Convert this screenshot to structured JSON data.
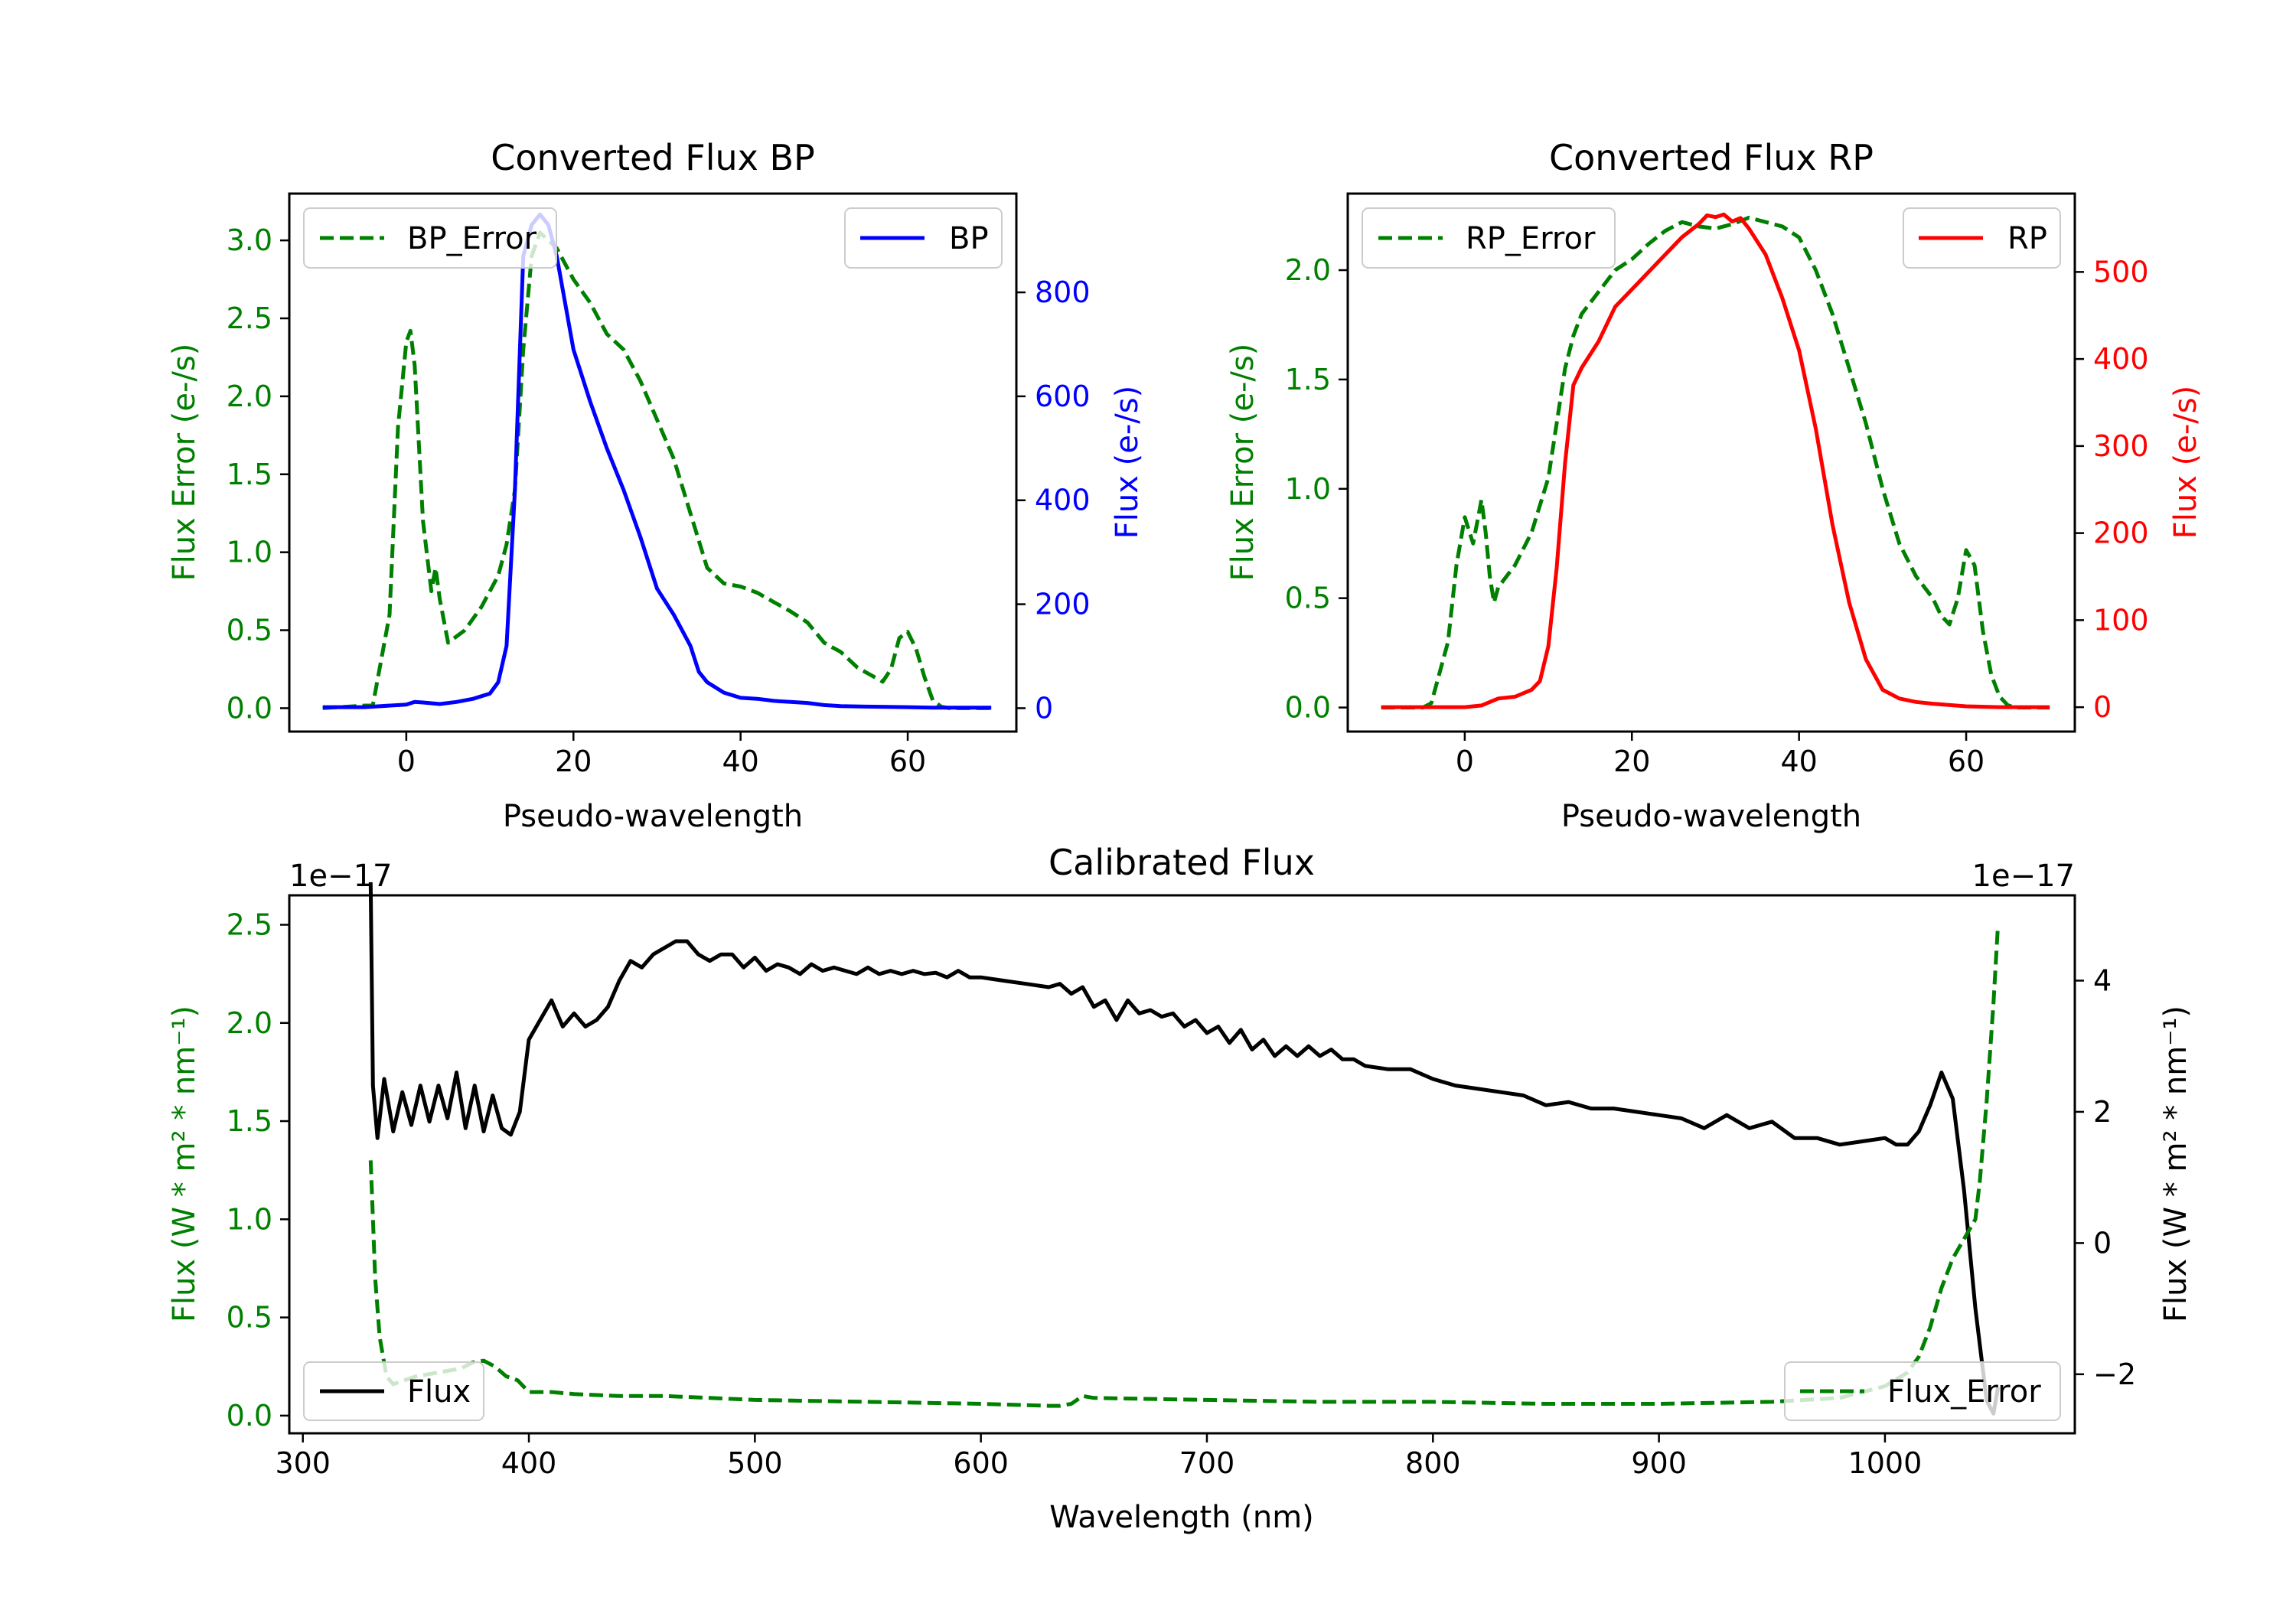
{
  "colors": {
    "bp": "#0000ff",
    "rp": "#ff0000",
    "error": "#008000",
    "flux": "#000000",
    "axis": "#000000"
  },
  "chart_data": [
    {
      "id": "bp",
      "type": "line",
      "title": "Converted Flux BP",
      "xlabel": "Pseudo-wavelength",
      "ylabel_left": "Flux Error (e-/s)",
      "ylabel_right": "Flux (e-/s)",
      "xlim": [
        -14,
        73
      ],
      "ylim_left": [
        -0.15,
        3.3
      ],
      "ylim_right": [
        -45,
        990
      ],
      "xticks": [
        0,
        20,
        40,
        60
      ],
      "xtick_labels": [
        "0",
        "20",
        "40",
        "60"
      ],
      "yticks_left": [
        0,
        0.5,
        1,
        1.5,
        2,
        2.5,
        3
      ],
      "ytick_labels_left": [
        "0.0",
        "0.5",
        "1.0",
        "1.5",
        "2.0",
        "2.5",
        "3.0"
      ],
      "yticks_right": [
        0,
        200,
        400,
        600,
        800
      ],
      "ytick_labels_right": [
        "0",
        "200",
        "400",
        "600",
        "800"
      ],
      "legend_left": {
        "label": "BP_Error",
        "placement": "upper left"
      },
      "legend_right": {
        "label": "BP",
        "placement": "upper right"
      },
      "series": [
        {
          "name": "BP_Error",
          "axis": "left",
          "style": "dashed",
          "color": "#008000",
          "x": [
            -10,
            -4,
            -2,
            -1,
            0,
            0.5,
            1,
            2,
            3,
            3.5,
            4,
            5,
            7,
            9,
            11,
            12,
            13,
            14,
            15,
            16,
            18,
            20,
            22,
            24,
            26,
            28,
            30,
            32,
            34,
            36,
            38,
            40,
            42,
            44,
            46,
            48,
            50,
            52,
            54,
            56,
            57,
            58,
            59,
            60,
            61,
            62,
            63,
            64,
            65,
            66,
            68,
            70
          ],
          "y": [
            0.0,
            0.02,
            0.6,
            1.8,
            2.35,
            2.42,
            2.2,
            1.2,
            0.75,
            0.9,
            0.7,
            0.42,
            0.5,
            0.65,
            0.85,
            1.05,
            1.4,
            2.3,
            2.9,
            3.05,
            2.95,
            2.75,
            2.6,
            2.4,
            2.3,
            2.1,
            1.85,
            1.6,
            1.25,
            0.9,
            0.8,
            0.78,
            0.74,
            0.68,
            0.62,
            0.55,
            0.42,
            0.36,
            0.26,
            0.2,
            0.17,
            0.25,
            0.45,
            0.49,
            0.38,
            0.2,
            0.05,
            0.01,
            0.0,
            0.0,
            0.0,
            0.0
          ]
        },
        {
          "name": "BP",
          "axis": "right",
          "style": "solid",
          "color": "#0000ff",
          "x": [
            -10,
            -5,
            0,
            1,
            2,
            4,
            6,
            8,
            10,
            11,
            12,
            13,
            14,
            15,
            16,
            17,
            18,
            20,
            22,
            24,
            26,
            28,
            30,
            32,
            34,
            35,
            36,
            38,
            40,
            42,
            44,
            46,
            48,
            50,
            52,
            55,
            60,
            63,
            65,
            70
          ],
          "y": [
            2,
            2,
            7,
            12,
            11,
            8,
            12,
            18,
            28,
            50,
            120,
            420,
            870,
            930,
            950,
            930,
            870,
            690,
            590,
            500,
            420,
            330,
            230,
            180,
            120,
            70,
            50,
            30,
            20,
            18,
            14,
            12,
            10,
            6,
            4,
            3,
            2,
            1,
            1,
            1
          ]
        }
      ]
    },
    {
      "id": "rp",
      "type": "line",
      "title": "Converted Flux RP",
      "xlabel": "Pseudo-wavelength",
      "ylabel_left": "Flux Error (e-/s)",
      "ylabel_right": "Flux (e-/s)",
      "xlim": [
        -14,
        73
      ],
      "ylim_left": [
        -0.11,
        2.35
      ],
      "ylim_right": [
        -28,
        590
      ],
      "xticks": [
        0,
        20,
        40,
        60
      ],
      "xtick_labels": [
        "0",
        "20",
        "40",
        "60"
      ],
      "yticks_left": [
        0,
        0.5,
        1,
        1.5,
        2
      ],
      "ytick_labels_left": [
        "0.0",
        "0.5",
        "1.0",
        "1.5",
        "2.0"
      ],
      "yticks_right": [
        0,
        100,
        200,
        300,
        400,
        500
      ],
      "ytick_labels_right": [
        "0",
        "100",
        "200",
        "300",
        "400",
        "500"
      ],
      "legend_left": {
        "label": "RP_Error",
        "placement": "upper left"
      },
      "legend_right": {
        "label": "RP",
        "placement": "upper right"
      },
      "series": [
        {
          "name": "RP_Error",
          "axis": "left",
          "style": "dashed",
          "color": "#008000",
          "x": [
            -10,
            -5,
            -4,
            -2,
            -1,
            0,
            1,
            1.5,
            2,
            2.5,
            3,
            3.5,
            4,
            6,
            8,
            10,
            11,
            12,
            13,
            14,
            16,
            18,
            20,
            22,
            24,
            26,
            28,
            30,
            32,
            34,
            36,
            38,
            40,
            42,
            44,
            46,
            48,
            50,
            52,
            54,
            56,
            57,
            58,
            59,
            60,
            61,
            62,
            63,
            64,
            65,
            66,
            68,
            70
          ],
          "y": [
            0.0,
            0.0,
            0.02,
            0.3,
            0.65,
            0.87,
            0.75,
            0.85,
            0.95,
            0.8,
            0.6,
            0.48,
            0.55,
            0.65,
            0.8,
            1.05,
            1.3,
            1.55,
            1.7,
            1.8,
            1.9,
            2.0,
            2.05,
            2.12,
            2.18,
            2.22,
            2.2,
            2.19,
            2.21,
            2.24,
            2.22,
            2.2,
            2.15,
            2.0,
            1.8,
            1.55,
            1.3,
            1.0,
            0.75,
            0.6,
            0.5,
            0.42,
            0.38,
            0.5,
            0.72,
            0.65,
            0.35,
            0.15,
            0.05,
            0.01,
            0.0,
            0.0,
            0.0
          ]
        },
        {
          "name": "RP",
          "axis": "right",
          "style": "solid",
          "color": "#ff0000",
          "x": [
            -10,
            -5,
            0,
            2,
            4,
            6,
            8,
            9,
            10,
            11,
            12,
            13,
            14,
            16,
            18,
            20,
            22,
            24,
            26,
            28,
            29,
            30,
            31,
            32,
            33,
            34,
            36,
            38,
            40,
            42,
            44,
            46,
            48,
            50,
            52,
            54,
            56,
            60,
            64,
            70
          ],
          "y": [
            0,
            0,
            0,
            2,
            10,
            12,
            20,
            30,
            70,
            160,
            280,
            370,
            390,
            420,
            460,
            480,
            500,
            520,
            540,
            555,
            565,
            563,
            566,
            558,
            562,
            550,
            520,
            470,
            410,
            320,
            210,
            120,
            55,
            20,
            10,
            6,
            4,
            1,
            0,
            0
          ]
        }
      ]
    },
    {
      "id": "cal",
      "type": "line",
      "title": "Calibrated Flux",
      "xlabel": "Wavelength (nm)",
      "ylabel_left": "Flux (W * m² * nm⁻¹)",
      "ylabel_right": "Flux (W * m² * nm⁻¹)",
      "offset_text_left": "1e−17",
      "offset_text_right": "1e−17",
      "xlim": [
        294,
        1084
      ],
      "ylim_left": [
        -0.09,
        2.65
      ],
      "ylim_right": [
        -2.9,
        5.3
      ],
      "xticks": [
        300,
        400,
        500,
        600,
        700,
        800,
        900,
        1000
      ],
      "xtick_labels": [
        "300",
        "400",
        "500",
        "600",
        "700",
        "800",
        "900",
        "1000"
      ],
      "yticks_left": [
        0,
        0.5,
        1,
        1.5,
        2,
        2.5
      ],
      "ytick_labels_left": [
        "0.0",
        "0.5",
        "1.0",
        "1.5",
        "2.0",
        "2.5"
      ],
      "yticks_right": [
        -2,
        0,
        2,
        4
      ],
      "ytick_labels_right": [
        "−2",
        "0",
        "2",
        "4"
      ],
      "legend_left": {
        "label": "Flux",
        "placement": "lower left"
      },
      "legend_right": {
        "label": "Flux_Error",
        "placement": "lower right"
      },
      "series": [
        {
          "name": "Flux",
          "axis": "right",
          "style": "solid",
          "color": "#000000",
          "x": [
            330,
            331,
            333,
            336,
            340,
            344,
            348,
            352,
            356,
            360,
            364,
            368,
            372,
            376,
            380,
            384,
            388,
            392,
            396,
            400,
            405,
            410,
            415,
            420,
            425,
            430,
            435,
            440,
            445,
            450,
            455,
            460,
            465,
            470,
            475,
            480,
            485,
            490,
            495,
            500,
            505,
            510,
            515,
            520,
            525,
            530,
            535,
            540,
            545,
            550,
            555,
            560,
            565,
            570,
            575,
            580,
            585,
            590,
            595,
            600,
            610,
            620,
            630,
            635,
            640,
            645,
            650,
            655,
            660,
            665,
            670,
            675,
            680,
            685,
            690,
            695,
            700,
            705,
            710,
            715,
            720,
            725,
            730,
            735,
            740,
            745,
            750,
            755,
            760,
            765,
            770,
            780,
            790,
            800,
            810,
            820,
            830,
            840,
            850,
            860,
            870,
            880,
            890,
            900,
            910,
            920,
            930,
            940,
            950,
            960,
            970,
            980,
            990,
            1000,
            1005,
            1010,
            1015,
            1020,
            1025,
            1030,
            1035,
            1040,
            1045,
            1048,
            1050
          ],
          "y": [
            5.5,
            2.4,
            1.6,
            2.5,
            1.7,
            2.3,
            1.8,
            2.4,
            1.85,
            2.4,
            1.9,
            2.6,
            1.75,
            2.4,
            1.7,
            2.25,
            1.75,
            1.65,
            2.0,
            3.1,
            3.4,
            3.7,
            3.3,
            3.5,
            3.3,
            3.4,
            3.6,
            4.0,
            4.3,
            4.2,
            4.4,
            4.5,
            4.6,
            4.6,
            4.4,
            4.3,
            4.4,
            4.4,
            4.2,
            4.35,
            4.15,
            4.25,
            4.2,
            4.1,
            4.25,
            4.15,
            4.2,
            4.15,
            4.1,
            4.2,
            4.1,
            4.15,
            4.1,
            4.15,
            4.1,
            4.12,
            4.05,
            4.15,
            4.05,
            4.05,
            4.0,
            3.95,
            3.9,
            3.95,
            3.8,
            3.9,
            3.6,
            3.7,
            3.4,
            3.7,
            3.5,
            3.55,
            3.45,
            3.5,
            3.3,
            3.4,
            3.2,
            3.3,
            3.05,
            3.25,
            2.95,
            3.1,
            2.85,
            3.0,
            2.85,
            3.0,
            2.85,
            2.95,
            2.8,
            2.8,
            2.7,
            2.65,
            2.65,
            2.5,
            2.4,
            2.35,
            2.3,
            2.25,
            2.1,
            2.15,
            2.05,
            2.05,
            2.0,
            1.95,
            1.9,
            1.75,
            1.95,
            1.75,
            1.85,
            1.6,
            1.6,
            1.5,
            1.55,
            1.6,
            1.5,
            1.5,
            1.7,
            2.1,
            2.6,
            2.2,
            0.8,
            -1.0,
            -2.4,
            -2.6,
            -2.2
          ]
        },
        {
          "name": "Flux_Error",
          "axis": "left",
          "style": "dashed",
          "color": "#008000",
          "x": [
            330,
            331,
            332,
            334,
            337,
            340,
            345,
            350,
            360,
            370,
            375,
            380,
            385,
            390,
            395,
            400,
            410,
            420,
            440,
            460,
            480,
            500,
            550,
            600,
            630,
            635,
            640,
            645,
            650,
            700,
            750,
            800,
            850,
            900,
            950,
            980,
            1000,
            1010,
            1015,
            1020,
            1025,
            1030,
            1035,
            1040,
            1042,
            1045,
            1048,
            1050
          ],
          "y": [
            1.3,
            1.0,
            0.7,
            0.4,
            0.2,
            0.16,
            0.18,
            0.2,
            0.22,
            0.24,
            0.27,
            0.28,
            0.25,
            0.2,
            0.18,
            0.12,
            0.12,
            0.11,
            0.1,
            0.1,
            0.09,
            0.08,
            0.07,
            0.06,
            0.05,
            0.05,
            0.06,
            0.1,
            0.09,
            0.08,
            0.07,
            0.07,
            0.06,
            0.06,
            0.07,
            0.09,
            0.15,
            0.22,
            0.3,
            0.45,
            0.65,
            0.8,
            0.9,
            1.0,
            1.2,
            1.6,
            2.1,
            2.5
          ]
        }
      ]
    }
  ]
}
